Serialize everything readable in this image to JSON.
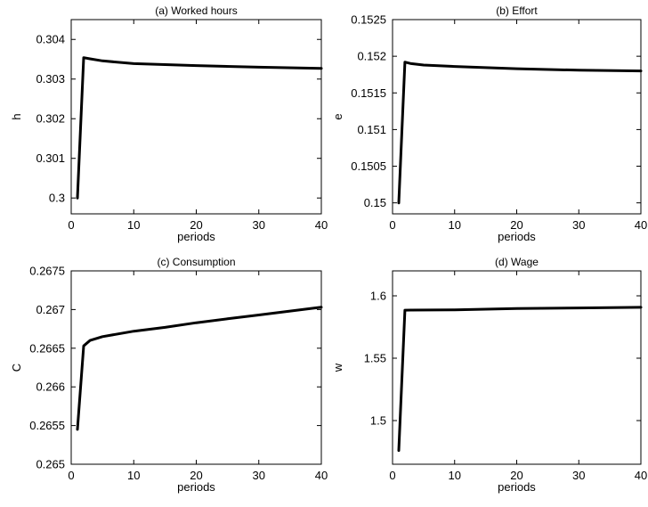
{
  "chart_data": [
    {
      "type": "line",
      "title": "(a) Worked hours",
      "xlabel": "periods",
      "ylabel": "h",
      "xlim": [
        0,
        40
      ],
      "ylim": [
        0.2996,
        0.3045
      ],
      "xticks": [
        0,
        10,
        20,
        30,
        40
      ],
      "xtick_labels": [
        "0",
        "10",
        "20",
        "30",
        "40"
      ],
      "yticks": [
        0.3,
        0.301,
        0.302,
        0.303,
        0.304
      ],
      "ytick_labels": [
        "0.3",
        "0.301",
        "0.302",
        "0.303",
        "0.304"
      ],
      "grid": false,
      "series": [
        {
          "x": [
            1,
            2,
            3,
            5,
            10,
            20,
            30,
            40
          ],
          "y": [
            0.3,
            0.30354,
            0.30351,
            0.30346,
            0.30339,
            0.30334,
            0.3033,
            0.30327
          ]
        }
      ]
    },
    {
      "type": "line",
      "title": "(b) Effort",
      "xlabel": "periods",
      "ylabel": "e",
      "xlim": [
        0,
        40
      ],
      "ylim": [
        0.14985,
        0.1525
      ],
      "xticks": [
        0,
        10,
        20,
        30,
        40
      ],
      "xtick_labels": [
        "0",
        "10",
        "20",
        "30",
        "40"
      ],
      "yticks": [
        0.15,
        0.1505,
        0.151,
        0.1515,
        0.152,
        0.1525
      ],
      "ytick_labels": [
        "0.15",
        "0.1505",
        "0.151",
        "0.1515",
        "0.152",
        "0.1525"
      ],
      "grid": false,
      "series": [
        {
          "x": [
            1,
            2,
            3,
            5,
            10,
            20,
            30,
            40
          ],
          "y": [
            0.15,
            0.15192,
            0.1519,
            0.15188,
            0.15186,
            0.15183,
            0.15181,
            0.1518
          ]
        }
      ]
    },
    {
      "type": "line",
      "title": "(c) Consumption",
      "xlabel": "periods",
      "ylabel": "C",
      "xlim": [
        0,
        40
      ],
      "ylim": [
        0.265,
        0.2675
      ],
      "xticks": [
        0,
        10,
        20,
        30,
        40
      ],
      "xtick_labels": [
        "0",
        "10",
        "20",
        "30",
        "40"
      ],
      "yticks": [
        0.265,
        0.2655,
        0.266,
        0.2665,
        0.267,
        0.2675
      ],
      "ytick_labels": [
        "0.265",
        "0.2655",
        "0.266",
        "0.2665",
        "0.267",
        "0.2675"
      ],
      "grid": false,
      "series": [
        {
          "x": [
            1,
            2,
            3,
            5,
            10,
            15,
            20,
            25,
            30,
            35,
            40
          ],
          "y": [
            0.26545,
            0.26653,
            0.2666,
            0.26665,
            0.26672,
            0.26677,
            0.26683,
            0.26688,
            0.26693,
            0.26698,
            0.26703
          ]
        }
      ]
    },
    {
      "type": "line",
      "title": "(d) Wage",
      "xlabel": "periods",
      "ylabel": "w",
      "xlim": [
        0,
        40
      ],
      "ylim": [
        1.465,
        1.62
      ],
      "xticks": [
        0,
        10,
        20,
        30,
        40
      ],
      "xtick_labels": [
        "0",
        "10",
        "20",
        "30",
        "40"
      ],
      "yticks": [
        1.5,
        1.55,
        1.6
      ],
      "ytick_labels": [
        "1.5",
        "1.55",
        "1.6"
      ],
      "grid": false,
      "series": [
        {
          "x": [
            1,
            2,
            3,
            10,
            20,
            30,
            40
          ],
          "y": [
            1.476,
            1.5885,
            1.5886,
            1.5888,
            1.5898,
            1.5903,
            1.5908
          ]
        }
      ]
    }
  ]
}
